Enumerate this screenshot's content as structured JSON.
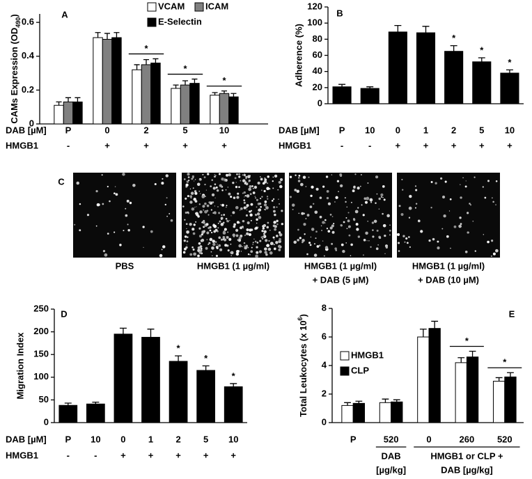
{
  "chart_data": [
    {
      "type": "bar",
      "panel": "A",
      "y_label": [
        "CAMs Expression (OD",
        "490",
        ")"
      ],
      "y_label_script": "sub",
      "ylim": [
        0,
        0.65
      ],
      "yticks": [
        0,
        0.2,
        0.4,
        0.6
      ],
      "category_label": "DAB [µM]",
      "categories": [
        "P",
        "0",
        "2",
        "5",
        "10"
      ],
      "treatment_label": "HMGB1",
      "treatment": [
        "-",
        "+",
        "+",
        "+",
        "+"
      ],
      "series": [
        {
          "name": "VCAM",
          "color": "#ffffff",
          "values": [
            0.11,
            0.51,
            0.32,
            0.21,
            0.17
          ],
          "errors": [
            0.02,
            0.03,
            0.03,
            0.02,
            0.015
          ]
        },
        {
          "name": "ICAM",
          "color": "#808080",
          "values": [
            0.13,
            0.5,
            0.35,
            0.23,
            0.18
          ],
          "errors": [
            0.025,
            0.035,
            0.03,
            0.025,
            0.015
          ]
        },
        {
          "name": "E-Selectin",
          "color": "#000000",
          "values": [
            0.13,
            0.51,
            0.36,
            0.24,
            0.16
          ],
          "errors": [
            0.025,
            0.03,
            0.025,
            0.025,
            0.02
          ]
        }
      ],
      "significance": [
        null,
        null,
        "*",
        "*",
        "*"
      ]
    },
    {
      "type": "bar",
      "panel": "B",
      "y_label": "Adherence (%)",
      "ylim": [
        0,
        120
      ],
      "yticks": [
        0,
        20,
        40,
        60,
        80,
        100,
        120
      ],
      "category_label": "DAB [µM]",
      "categories": [
        "P",
        "10",
        "0",
        "1",
        "2",
        "5",
        "10"
      ],
      "treatment_label": "HMGB1",
      "treatment": [
        "-",
        "-",
        "+",
        "+",
        "+",
        "+",
        "+"
      ],
      "color": "#000000",
      "values": [
        21,
        19,
        89,
        88,
        65,
        52,
        38
      ],
      "errors": [
        3,
        2,
        8,
        8,
        7,
        5,
        4
      ],
      "significance": [
        null,
        null,
        null,
        null,
        "*",
        "*",
        "*"
      ]
    },
    {
      "type": "image",
      "panel": "C",
      "captions": [
        [
          "PBS"
        ],
        [
          "HMGB1 (1 µg/ml)"
        ],
        [
          "HMGB1 (1 µg/ml)",
          "+ DAB (5 µM)"
        ],
        [
          "HMGB1 (1 µg/ml)",
          "+ DAB (10 µM)"
        ]
      ]
    },
    {
      "type": "bar",
      "panel": "D",
      "y_label": "Migration Index",
      "ylim": [
        0,
        250
      ],
      "yticks": [
        0,
        50,
        100,
        150,
        200,
        250
      ],
      "category_label": "DAB [µM]",
      "categories": [
        "P",
        "10",
        "0",
        "1",
        "2",
        "5",
        "10"
      ],
      "treatment_label": "HMGB1",
      "treatment": [
        "-",
        "-",
        "+",
        "+",
        "+",
        "+",
        "+"
      ],
      "color": "#000000",
      "values": [
        38,
        41,
        195,
        188,
        135,
        115,
        79
      ],
      "errors": [
        5,
        4,
        13,
        18,
        12,
        10,
        7
      ],
      "significance": [
        null,
        null,
        null,
        null,
        "*",
        "*",
        "*"
      ]
    },
    {
      "type": "bar",
      "panel": "E",
      "y_label": [
        "Total Leukocytes (x 10",
        "6",
        ")"
      ],
      "y_label_script": "super",
      "ylim": [
        0,
        8
      ],
      "yticks": [
        0,
        2,
        4,
        6,
        8
      ],
      "categories": [
        "P",
        "520",
        "0",
        "260",
        "520"
      ],
      "groups": [
        [
          "DAB",
          "[µg/kg]"
        ],
        [
          "HMGB1 or CLP +",
          "DAB [µg/kg]"
        ]
      ],
      "series": [
        {
          "name": "HMGB1",
          "color": "#ffffff",
          "values": [
            1.2,
            1.4,
            6.0,
            4.2,
            2.9
          ],
          "errors": [
            0.2,
            0.25,
            0.55,
            0.35,
            0.25
          ]
        },
        {
          "name": "CLP",
          "color": "#000000",
          "values": [
            1.35,
            1.45,
            6.6,
            4.6,
            3.2
          ],
          "errors": [
            0.15,
            0.15,
            0.5,
            0.4,
            0.3
          ]
        }
      ],
      "significance": [
        null,
        null,
        null,
        "*",
        "*"
      ]
    }
  ]
}
